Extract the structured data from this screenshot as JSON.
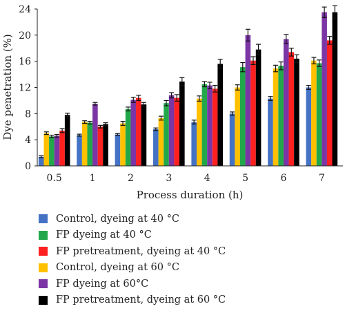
{
  "chart_data": {
    "type": "bar",
    "title": "",
    "xlabel": "Process duration (h)",
    "ylabel": "Dye penetration (%)",
    "categories": [
      "0.5",
      "1",
      "2",
      "3",
      "4",
      "5",
      "6",
      "7"
    ],
    "ylim": [
      0,
      24
    ],
    "yticks": [
      "0",
      "4",
      "8",
      "12",
      "16",
      "20",
      "24"
    ],
    "grid": false,
    "legend_position": "bottom",
    "series": [
      {
        "name": "Control, dyeing at 40 °C",
        "color": "#4472C4",
        "values": [
          1.4,
          4.7,
          4.8,
          5.6,
          6.7,
          8.0,
          10.3,
          12.0
        ],
        "errors": [
          0.15,
          0.15,
          0.15,
          0.2,
          0.3,
          0.25,
          0.3,
          0.3
        ]
      },
      {
        "name": "Control, dyeing at 60 °C",
        "color": "#FFC000",
        "values": [
          5.0,
          6.7,
          6.5,
          7.3,
          10.3,
          12.0,
          14.9,
          16.1
        ],
        "errors": [
          0.2,
          0.2,
          0.3,
          0.3,
          0.4,
          0.4,
          0.5,
          0.5
        ]
      },
      {
        "name": "FP dyeing at 40 °C",
        "color": "#22A84A",
        "values": [
          4.5,
          6.6,
          8.7,
          9.6,
          12.5,
          15.1,
          15.3,
          15.7
        ],
        "errors": [
          0.2,
          0.2,
          0.3,
          0.4,
          0.4,
          0.7,
          0.6,
          0.5
        ]
      },
      {
        "name": "FP dyeing at 60°C",
        "color": "#7B35A4",
        "values": [
          4.6,
          9.5,
          10.1,
          10.8,
          12.3,
          20.0,
          19.4,
          23.5
        ],
        "errors": [
          0.2,
          0.2,
          0.4,
          0.4,
          0.5,
          0.9,
          0.7,
          0.8
        ]
      },
      {
        "name": "FP pretreatment, dyeing at 40 °C",
        "color": "#FF2020",
        "values": [
          5.4,
          6.0,
          10.4,
          10.4,
          11.8,
          16.1,
          17.4,
          19.2
        ],
        "errors": [
          0.3,
          0.2,
          0.4,
          0.5,
          0.5,
          0.6,
          0.6,
          0.6
        ]
      },
      {
        "name": "FP pretreatment, dyeing at 60 °C",
        "color": "#000000",
        "values": [
          7.8,
          6.4,
          9.4,
          12.9,
          15.6,
          17.8,
          16.4,
          23.5
        ],
        "errors": [
          0.25,
          0.2,
          0.3,
          0.6,
          0.7,
          0.8,
          0.6,
          1.0
        ]
      }
    ]
  },
  "legend": {
    "items": [
      {
        "label": "Control, dyeing at 40 °C",
        "color": "#4472C4"
      },
      {
        "label": "FP dyeing at 40 °C",
        "color": "#22A84A"
      },
      {
        "label": "FP pretreatment, dyeing at 40 °C",
        "color": "#FF2020"
      },
      {
        "label": "Control, dyeing at 60 °C",
        "color": "#FFC000"
      },
      {
        "label": "FP dyeing at 60°C",
        "color": "#7B35A4"
      },
      {
        "label": "FP pretreatment, dyeing at 60 °C",
        "color": "#000000"
      }
    ]
  }
}
